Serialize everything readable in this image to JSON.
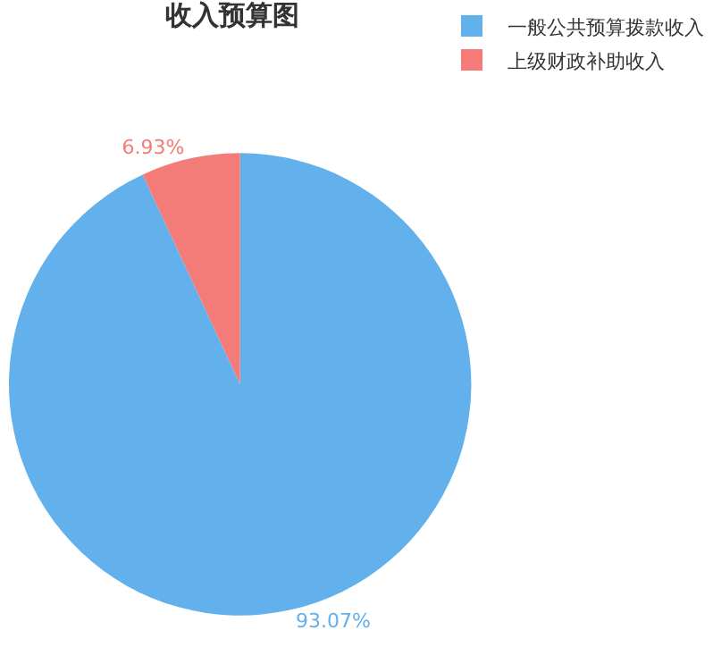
{
  "chart_data": {
    "type": "pie",
    "title": "收入预算图",
    "categories": [
      "一般公共预算拨款收入",
      "上级财政补助收入"
    ],
    "values": [
      93.07,
      6.93
    ],
    "colors": [
      "#62b0ec",
      "#f47c78"
    ],
    "value_labels": [
      "93.07%",
      "6.93%"
    ],
    "legend": "top right"
  }
}
